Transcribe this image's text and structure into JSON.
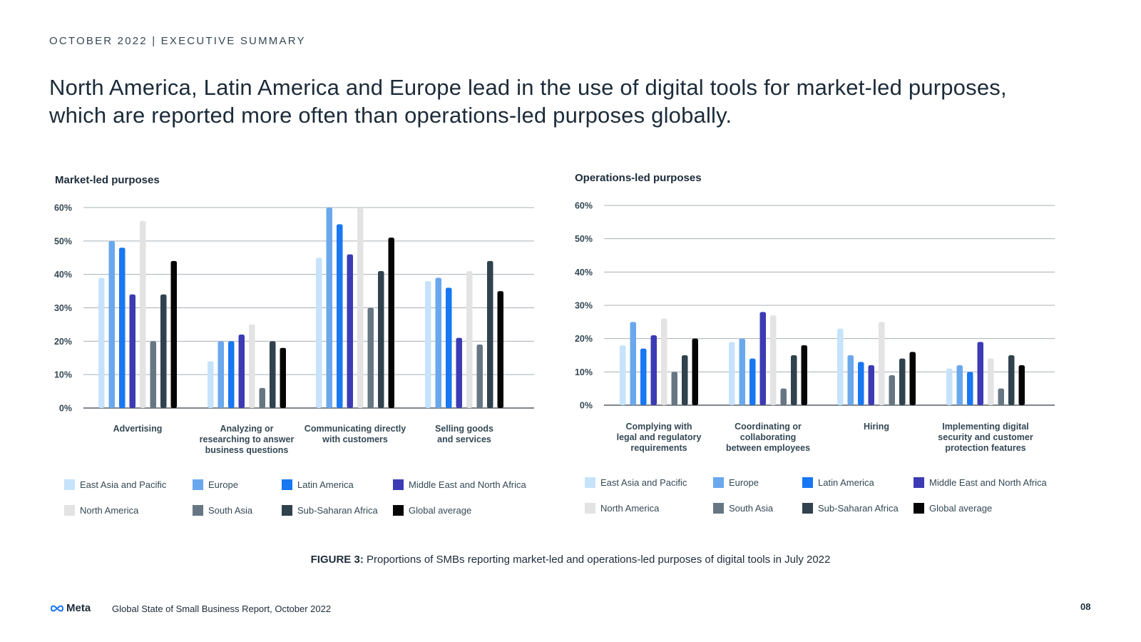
{
  "header": {
    "kicker": "OCTOBER 2022 | EXECUTIVE SUMMARY"
  },
  "headline": "North America, Latin America and Europe lead in the use of digital tools for market-led purposes, which are reported more often than operations-led purposes globally.",
  "legend": [
    {
      "name": "East Asia and Pacific",
      "color": "#c7e3fb"
    },
    {
      "name": "Europe",
      "color": "#6aa8ed"
    },
    {
      "name": "Latin America",
      "color": "#1877f2"
    },
    {
      "name": "Middle East and North Africa",
      "color": "#3c3bb3"
    },
    {
      "name": "North America",
      "color": "#e3e3e3"
    },
    {
      "name": "South Asia",
      "color": "#677683"
    },
    {
      "name": "Sub-Saharan Africa",
      "color": "#30424d"
    },
    {
      "name": "Global average",
      "color": "#050505"
    }
  ],
  "chart_data": [
    {
      "type": "bar",
      "title": "Market-led purposes",
      "ylim": [
        0,
        60
      ],
      "yticks": [
        "0%",
        "10%",
        "20%",
        "30%",
        "40%",
        "50%",
        "60%"
      ],
      "categories": [
        [
          "Advertising"
        ],
        [
          "Analyzing or",
          "researching to answer",
          "business questions"
        ],
        [
          "Communicating directly",
          "with customers"
        ],
        [
          "Selling goods",
          "and services"
        ]
      ],
      "series": [
        {
          "name": "East Asia and Pacific",
          "values": [
            39,
            14,
            45,
            38
          ]
        },
        {
          "name": "Europe",
          "values": [
            50,
            20,
            60,
            39
          ]
        },
        {
          "name": "Latin America",
          "values": [
            48,
            20,
            55,
            36
          ]
        },
        {
          "name": "Middle East and North Africa",
          "values": [
            34,
            22,
            46,
            21
          ]
        },
        {
          "name": "North America",
          "values": [
            56,
            25,
            60,
            41
          ]
        },
        {
          "name": "South Asia",
          "values": [
            20,
            6,
            30,
            19
          ]
        },
        {
          "name": "Sub-Saharan Africa",
          "values": [
            34,
            20,
            41,
            44
          ]
        },
        {
          "name": "Global average",
          "values": [
            44,
            18,
            51,
            35
          ]
        }
      ]
    },
    {
      "type": "bar",
      "title": "Operations-led purposes",
      "ylim": [
        0,
        60
      ],
      "yticks": [
        "0%",
        "10%",
        "20%",
        "30%",
        "40%",
        "50%",
        "60%"
      ],
      "categories": [
        [
          "Complying with",
          "legal and regulatory",
          "requirements"
        ],
        [
          "Coordinating or",
          "collaborating",
          "between employees"
        ],
        [
          "Hiring"
        ],
        [
          "Implementing digital",
          "security and customer",
          "protection features"
        ]
      ],
      "series": [
        {
          "name": "East Asia and Pacific",
          "values": [
            18,
            19,
            23,
            11
          ]
        },
        {
          "name": "Europe",
          "values": [
            25,
            20,
            15,
            12
          ]
        },
        {
          "name": "Latin America",
          "values": [
            17,
            14,
            13,
            10
          ]
        },
        {
          "name": "Middle East and North Africa",
          "values": [
            21,
            28,
            12,
            19
          ]
        },
        {
          "name": "North America",
          "values": [
            26,
            27,
            25,
            14
          ]
        },
        {
          "name": "South Asia",
          "values": [
            10,
            5,
            9,
            5
          ]
        },
        {
          "name": "Sub-Saharan Africa",
          "values": [
            15,
            15,
            14,
            15
          ]
        },
        {
          "name": "Global average",
          "values": [
            20,
            18,
            16,
            12
          ]
        }
      ]
    }
  ],
  "caption": {
    "label": "FIGURE 3:",
    "text": "Proportions of SMBs reporting market-led and operations-led purposes of digital tools in July 2022"
  },
  "footer": {
    "logo": "Meta",
    "report": "Global State of Small Business Report, October 2022",
    "page": "08"
  }
}
